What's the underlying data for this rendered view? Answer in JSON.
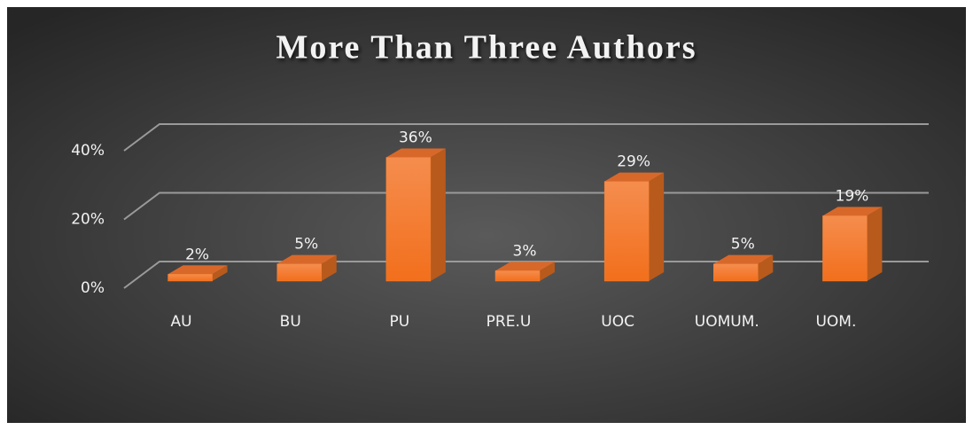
{
  "chart_data": {
    "type": "bar",
    "title": "More Than Three Authors",
    "categories": [
      "AU",
      "BU",
      "PU",
      "PRE.U",
      "UOC",
      "UOMUM.",
      "UOM."
    ],
    "values": [
      2,
      5,
      36,
      3,
      29,
      5,
      19
    ],
    "value_labels": [
      "2%",
      "5%",
      "36%",
      "3%",
      "29%",
      "5%",
      "19%"
    ],
    "color": "#f47f2e",
    "ylim": [
      0,
      40
    ],
    "yticks": [
      {
        "value": 0,
        "label": "0%"
      },
      {
        "value": 20,
        "label": "20%"
      },
      {
        "value": 40,
        "label": "40%"
      }
    ],
    "grid": true
  }
}
